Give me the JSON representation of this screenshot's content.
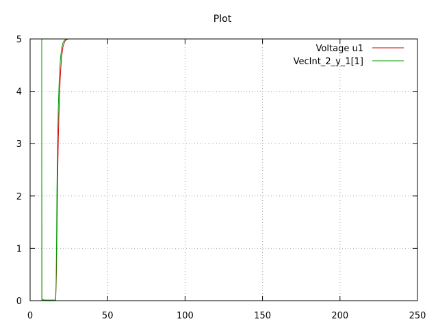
{
  "chart_data": {
    "type": "line",
    "title": "Plot",
    "xlabel": "",
    "ylabel": "",
    "xlim": [
      0,
      250
    ],
    "ylim": [
      0,
      5
    ],
    "x_ticks": [
      0,
      50,
      100,
      150,
      200,
      250
    ],
    "y_ticks": [
      0,
      1,
      2,
      3,
      4,
      5
    ],
    "x_tick_labels": [
      "0",
      "50",
      "100",
      "150",
      "200",
      "250"
    ],
    "y_tick_labels": [
      "0",
      "1",
      "2",
      "3",
      "4",
      "5"
    ],
    "grid": true,
    "legend_position": "top-right",
    "series": [
      {
        "name": "Voltage u1",
        "color": "#cc0000",
        "x": [
          0,
          7.5,
          7.5,
          7.5,
          7.6,
          10,
          16.4,
          16.8,
          17.0,
          17.3,
          17.7,
          18.2,
          18.8,
          19.5,
          20.3,
          21.2,
          22.3,
          23.5,
          25,
          250
        ],
        "y": [
          5,
          5,
          2.7,
          2.62,
          0.02,
          0.01,
          0.01,
          0.3,
          0.55,
          1.3,
          2.2,
          3.1,
          3.75,
          4.3,
          4.65,
          4.85,
          4.95,
          4.99,
          5,
          5
        ]
      },
      {
        "name": "VecInt_2_y_1[1]",
        "color": "#00a000",
        "x": [
          0,
          7.5,
          7.6,
          7.7,
          10,
          16.4,
          16.6,
          16.8,
          17.0,
          17.3,
          17.7,
          18.2,
          18.8,
          19.5,
          20.3,
          21.2,
          22.3,
          23.5,
          25,
          250
        ],
        "y": [
          5,
          5,
          0.02,
          0.01,
          0.01,
          0.01,
          0.1,
          0.45,
          1.0,
          2.1,
          3.0,
          3.7,
          4.25,
          4.6,
          4.82,
          4.93,
          4.98,
          5,
          5,
          5
        ]
      }
    ]
  }
}
